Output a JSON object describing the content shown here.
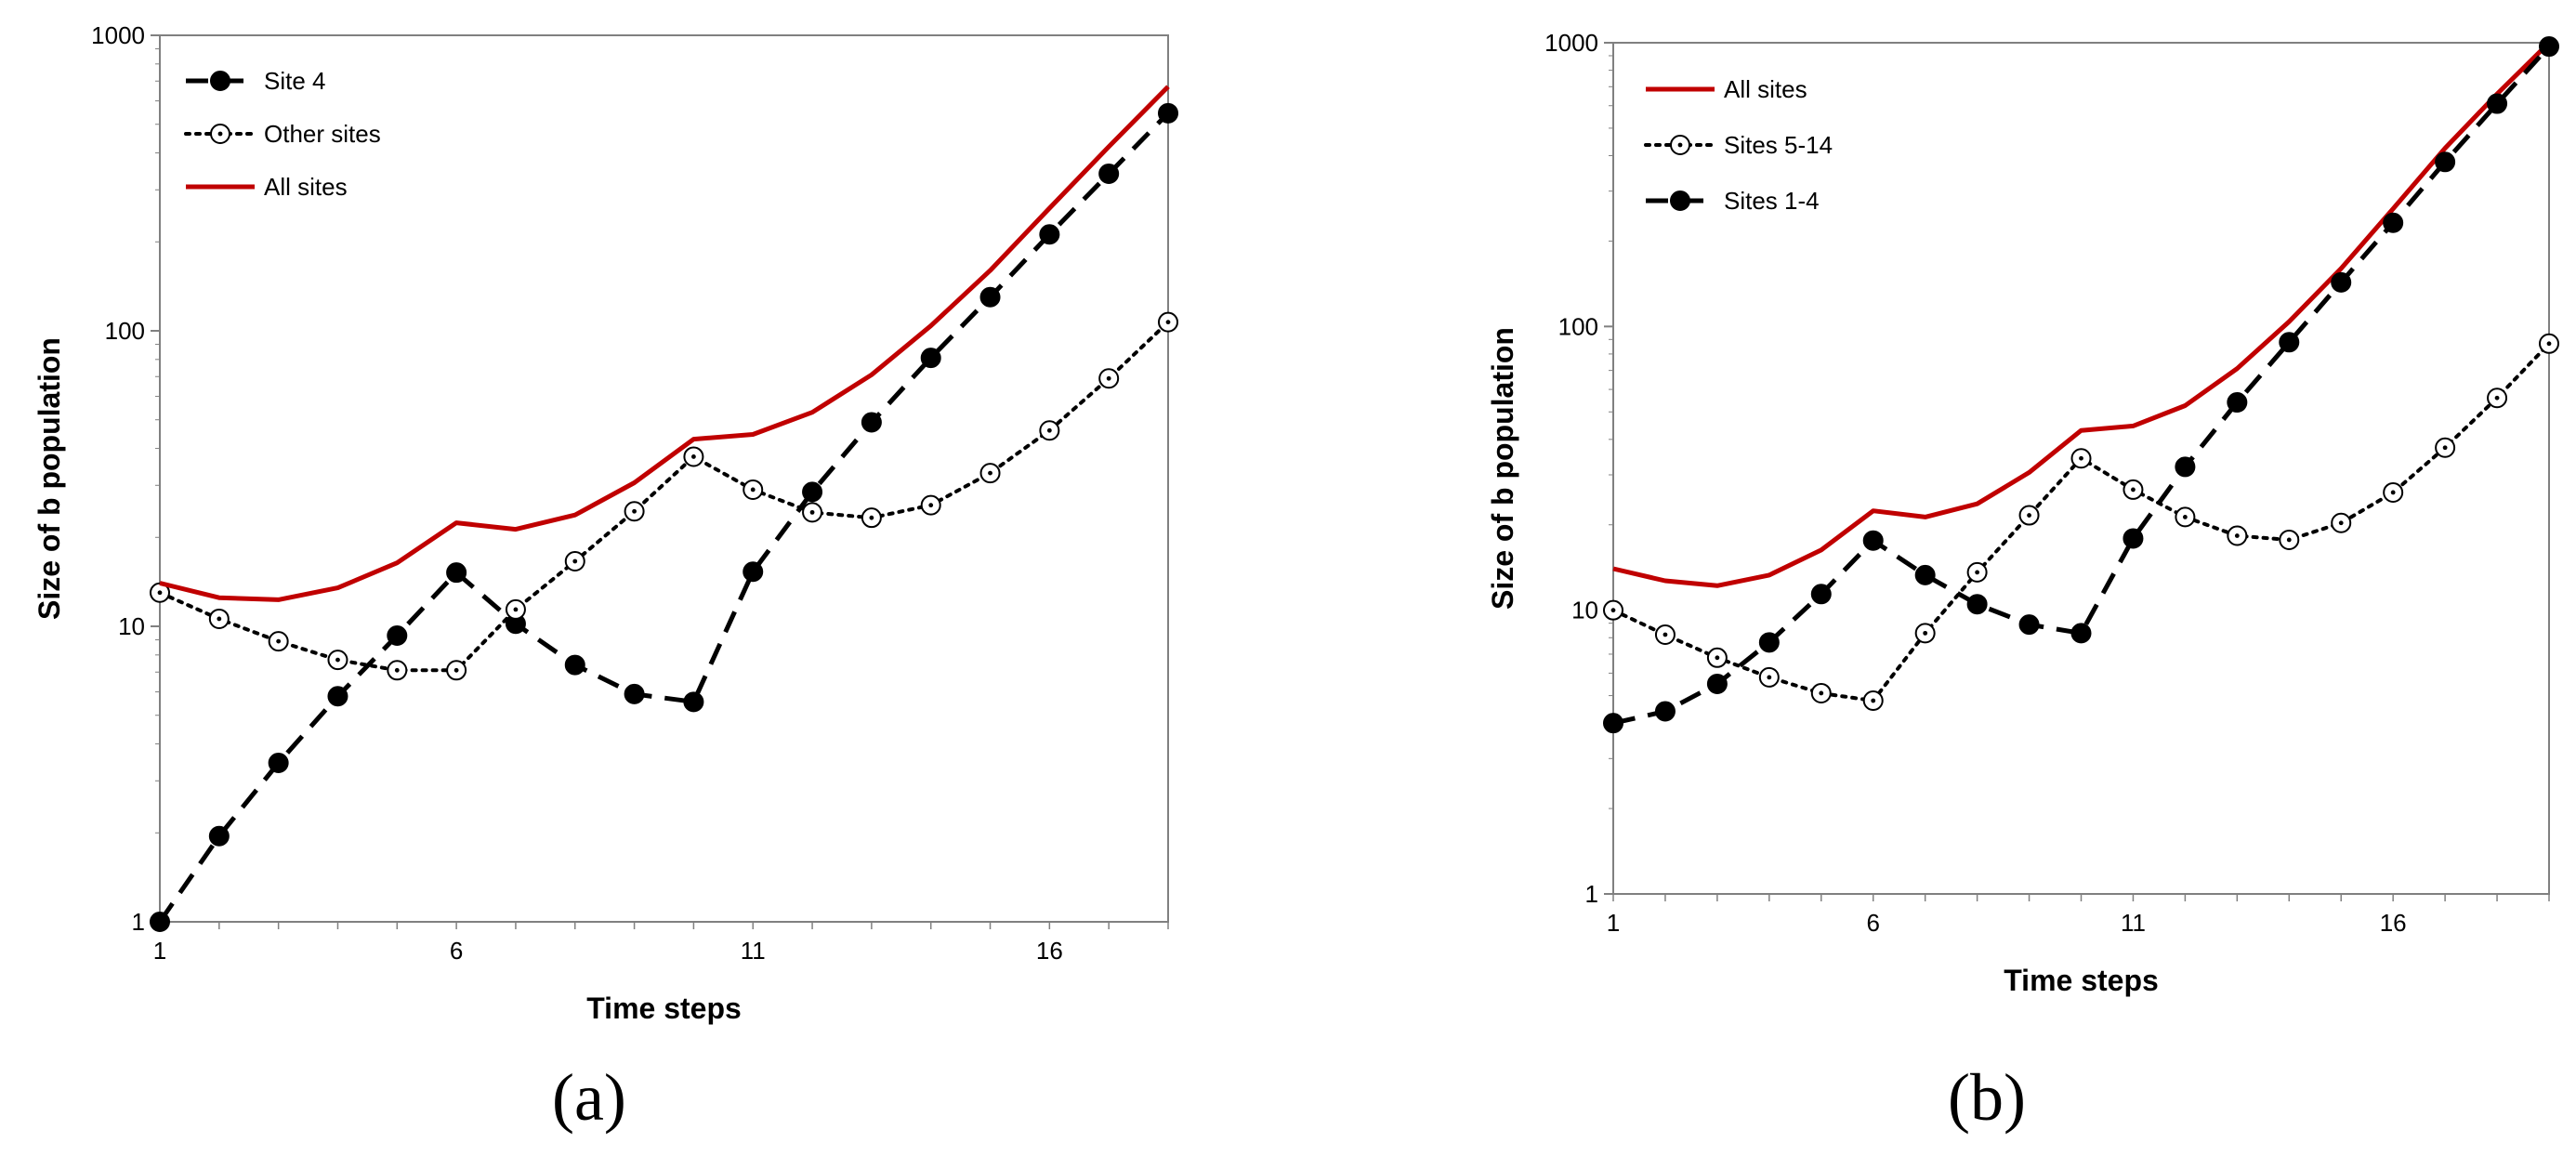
{
  "colors": {
    "red": "#c00000",
    "black": "#000000",
    "axis": "#808080"
  },
  "chart_data": [
    {
      "panel_label": "(a)",
      "type": "line",
      "xlabel": "Time steps",
      "ylabel": "Size of b population",
      "x_ticks": [
        1,
        6,
        11,
        16
      ],
      "xlim": [
        1,
        18
      ],
      "y_scale": "log",
      "ylim": [
        1,
        1000
      ],
      "y_ticks": [
        1,
        10,
        100,
        1000
      ],
      "y_tick_labels": [
        "1",
        "10",
        "100",
        "1000"
      ],
      "grid": false,
      "legend_position": "top-left",
      "series": [
        {
          "name": "Site 4",
          "style": "dashed",
          "marker": "filled-circle",
          "color": "#000000",
          "x": [
            1,
            2,
            3,
            4,
            5,
            6,
            7,
            8,
            9,
            10,
            11,
            12,
            13,
            14,
            15,
            16,
            17,
            18
          ],
          "y": [
            1.0,
            1.95,
            3.45,
            5.8,
            9.3,
            15.2,
            10.2,
            7.4,
            5.9,
            5.55,
            15.3,
            28.5,
            49,
            81,
            130,
            212,
            340,
            545
          ]
        },
        {
          "name": "Other sites",
          "style": "dotted",
          "marker": "open-circle",
          "color": "#000000",
          "x": [
            1,
            2,
            3,
            4,
            5,
            6,
            7,
            8,
            9,
            10,
            11,
            12,
            13,
            14,
            15,
            16,
            17,
            18
          ],
          "y": [
            13,
            10.6,
            8.9,
            7.7,
            7.1,
            7.1,
            11.4,
            16.6,
            24.5,
            37.5,
            29,
            24.3,
            23.3,
            25.7,
            33,
            46,
            69,
            107
          ]
        },
        {
          "name": "All sites",
          "style": "solid",
          "marker": "none",
          "color": "#c00000",
          "x": [
            1,
            2,
            3,
            4,
            5,
            6,
            7,
            8,
            9,
            10,
            11,
            12,
            13,
            14,
            15,
            16,
            17,
            18
          ],
          "y": [
            14,
            12.5,
            12.3,
            13.5,
            16.4,
            22.4,
            21.3,
            23.8,
            30.6,
            43,
            44.6,
            53,
            71,
            104,
            160,
            260,
            420,
            670
          ]
        }
      ]
    },
    {
      "panel_label": "(b)",
      "type": "line",
      "xlabel": "Time steps",
      "ylabel": "Size of b population",
      "x_ticks": [
        1,
        6,
        11,
        16
      ],
      "xlim": [
        1,
        19
      ],
      "y_scale": "log",
      "ylim": [
        1,
        1000
      ],
      "y_ticks": [
        1,
        10,
        100,
        1000
      ],
      "y_tick_labels": [
        "1",
        "10",
        "100",
        "1000"
      ],
      "grid": false,
      "legend_position": "top-left",
      "series": [
        {
          "name": "All sites",
          "style": "solid",
          "marker": "none",
          "color": "#c00000",
          "x": [
            1,
            2,
            3,
            4,
            5,
            6,
            7,
            8,
            9,
            10,
            11,
            12,
            13,
            14,
            15,
            16,
            17,
            18,
            19
          ],
          "y": [
            14,
            12.7,
            12.2,
            13.3,
            16.3,
            22.4,
            21.3,
            23.7,
            30.6,
            43,
            44.6,
            52.6,
            71,
            104,
            160,
            260,
            425,
            660,
            1000
          ]
        },
        {
          "name": "Sites 5-14",
          "style": "dotted",
          "marker": "open-circle",
          "color": "#000000",
          "x": [
            1,
            2,
            3,
            4,
            5,
            6,
            7,
            8,
            9,
            10,
            11,
            12,
            13,
            14,
            15,
            16,
            17,
            18,
            19
          ],
          "y": [
            10,
            8.2,
            6.8,
            5.8,
            5.1,
            4.8,
            8.3,
            13.6,
            21.6,
            34.3,
            26.6,
            21.3,
            18.3,
            17.7,
            20.3,
            26,
            37.4,
            56,
            87
          ]
        },
        {
          "name": "Sites 1-4",
          "style": "dashed",
          "marker": "filled-circle",
          "color": "#000000",
          "x": [
            1,
            2,
            3,
            4,
            5,
            6,
            7,
            8,
            9,
            10,
            11,
            12,
            13,
            14,
            15,
            16,
            17,
            18,
            19
          ],
          "y": [
            4,
            4.4,
            5.5,
            7.7,
            11.4,
            17.6,
            13.3,
            10.5,
            8.9,
            8.3,
            17.9,
            32,
            54,
            88,
            143,
            232,
            380,
            610,
            970
          ]
        }
      ]
    }
  ]
}
